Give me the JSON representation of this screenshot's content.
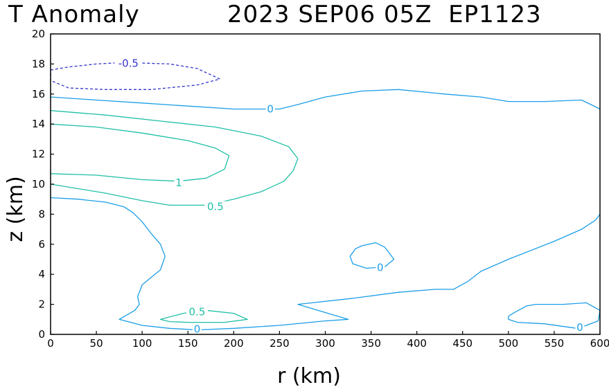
{
  "chart_data": {
    "type": "contour",
    "title_left": "T Anomaly",
    "title_right": "2023 SEP06 05Z  EP1123",
    "xlabel": "r (km)",
    "ylabel": "z (km)",
    "xlim": [
      0,
      600
    ],
    "ylim": [
      0,
      20
    ],
    "xticks": [
      "0",
      "50",
      "100",
      "150",
      "200",
      "250",
      "300",
      "350",
      "400",
      "450",
      "500",
      "550",
      "600"
    ],
    "yticks": [
      "0",
      "2",
      "4",
      "6",
      "8",
      "10",
      "12",
      "14",
      "16",
      "18",
      "20"
    ],
    "colors": {
      "negative": "#3333cc",
      "zero": "#1a9ee6",
      "positive": "#1fbfa6",
      "axis": "#000000"
    },
    "contours": [
      {
        "id": "neg-0.5-upper",
        "level": "-0.5",
        "style": "dashed",
        "color_key": "negative",
        "closed": true,
        "points": [
          [
            0,
            17.6
          ],
          [
            20,
            17.8
          ],
          [
            50,
            18.0
          ],
          [
            80,
            18.1
          ],
          [
            130,
            18.0
          ],
          [
            160,
            17.7
          ],
          [
            185,
            17.0
          ],
          [
            160,
            16.6
          ],
          [
            110,
            16.3
          ],
          [
            60,
            16.3
          ],
          [
            20,
            16.4
          ],
          [
            0,
            16.9
          ]
        ],
        "label": {
          "text": "-0.5",
          "at": [
            85,
            18.05
          ]
        }
      },
      {
        "id": "zero-upper",
        "level": "0",
        "style": "solid",
        "color_key": "zero",
        "closed": false,
        "points": [
          [
            0,
            15.8
          ],
          [
            50,
            15.6
          ],
          [
            100,
            15.4
          ],
          [
            150,
            15.2
          ],
          [
            200,
            15.0
          ],
          [
            250,
            15.0
          ],
          [
            270,
            15.3
          ],
          [
            300,
            15.8
          ],
          [
            340,
            16.2
          ],
          [
            380,
            16.3
          ],
          [
            430,
            16.0
          ],
          [
            470,
            15.8
          ],
          [
            500,
            15.5
          ],
          [
            540,
            15.5
          ],
          [
            580,
            15.6
          ],
          [
            600,
            15.0
          ]
        ],
        "label": {
          "text": "0",
          "at": [
            240,
            15.0
          ]
        }
      },
      {
        "id": "pos-0.5-outer",
        "level": "0.5",
        "style": "solid",
        "color_key": "positive",
        "closed": false,
        "points": [
          [
            0,
            14.9
          ],
          [
            60,
            14.6
          ],
          [
            120,
            14.2
          ],
          [
            180,
            13.8
          ],
          [
            230,
            13.2
          ],
          [
            260,
            12.5
          ],
          [
            270,
            11.7
          ],
          [
            265,
            10.9
          ],
          [
            255,
            10.2
          ],
          [
            230,
            9.5
          ],
          [
            200,
            9.0
          ],
          [
            170,
            8.6
          ],
          [
            130,
            8.6
          ],
          [
            100,
            8.9
          ],
          [
            60,
            9.4
          ],
          [
            30,
            9.7
          ],
          [
            0,
            10.0
          ]
        ],
        "label": {
          "text": "0.5",
          "at": [
            180,
            8.5
          ]
        }
      },
      {
        "id": "pos-1-inner",
        "level": "1",
        "style": "solid",
        "color_key": "positive",
        "closed": false,
        "points": [
          [
            0,
            14.0
          ],
          [
            50,
            13.8
          ],
          [
            100,
            13.4
          ],
          [
            150,
            12.9
          ],
          [
            180,
            12.4
          ],
          [
            195,
            11.9
          ],
          [
            190,
            11.0
          ],
          [
            170,
            10.4
          ],
          [
            140,
            10.2
          ],
          [
            100,
            10.3
          ],
          [
            50,
            10.6
          ],
          [
            0,
            10.7
          ]
        ],
        "label": {
          "text": "1",
          "at": [
            140,
            10.1
          ]
        }
      },
      {
        "id": "zero-lower-left",
        "level": "0",
        "style": "solid",
        "color_key": "zero",
        "closed": false,
        "points": [
          [
            0,
            9.1
          ],
          [
            30,
            9.0
          ],
          [
            60,
            8.8
          ],
          [
            80,
            8.5
          ],
          [
            90,
            8.1
          ],
          [
            100,
            7.5
          ],
          [
            110,
            6.7
          ],
          [
            120,
            6.0
          ],
          [
            125,
            5.2
          ],
          [
            120,
            4.3
          ],
          [
            110,
            3.8
          ],
          [
            100,
            3.3
          ],
          [
            95,
            2.5
          ],
          [
            97,
            2.0
          ],
          [
            92,
            1.6
          ],
          [
            75,
            1.0
          ],
          [
            100,
            0.6
          ],
          [
            130,
            0.4
          ],
          [
            160,
            0.3
          ],
          [
            200,
            0.4
          ],
          [
            250,
            0.6
          ],
          [
            300,
            0.9
          ],
          [
            325,
            1.0
          ],
          [
            270,
            2.0
          ],
          [
            330,
            2.4
          ],
          [
            380,
            2.8
          ],
          [
            420,
            3.0
          ],
          [
            440,
            3.0
          ],
          [
            455,
            3.5
          ],
          [
            470,
            4.2
          ],
          [
            500,
            5.0
          ],
          [
            550,
            6.2
          ],
          [
            580,
            7.0
          ],
          [
            595,
            7.6
          ],
          [
            600,
            8.0
          ]
        ],
        "label": {
          "text": "0",
          "at": [
            160,
            0.35
          ]
        }
      },
      {
        "id": "zero-blob-mid",
        "level": "0",
        "style": "solid",
        "color_key": "zero",
        "closed": true,
        "points": [
          [
            340,
            5.9
          ],
          [
            355,
            6.1
          ],
          [
            365,
            5.8
          ],
          [
            375,
            5.0
          ],
          [
            365,
            4.5
          ],
          [
            345,
            4.4
          ],
          [
            330,
            4.7
          ],
          [
            327,
            5.2
          ],
          [
            333,
            5.7
          ]
        ],
        "label": {
          "text": "0",
          "at": [
            360,
            4.45
          ]
        }
      },
      {
        "id": "pos-0.5-lower",
        "level": "0.5",
        "style": "solid",
        "color_key": "positive",
        "closed": true,
        "points": [
          [
            120,
            1.0
          ],
          [
            145,
            1.4
          ],
          [
            170,
            1.6
          ],
          [
            200,
            1.4
          ],
          [
            215,
            1.0
          ],
          [
            190,
            0.8
          ],
          [
            150,
            0.8
          ],
          [
            130,
            0.85
          ]
        ],
        "label": {
          "text": "0.5",
          "at": [
            160,
            1.5
          ]
        }
      },
      {
        "id": "zero-blob-right",
        "level": "0",
        "style": "solid",
        "color_key": "zero",
        "closed": true,
        "points": [
          [
            500,
            1.2
          ],
          [
            505,
            1.4
          ],
          [
            520,
            1.9
          ],
          [
            530,
            2.0
          ],
          [
            560,
            2.0
          ],
          [
            585,
            2.1
          ],
          [
            600,
            1.6
          ],
          [
            598,
            0.9
          ],
          [
            585,
            0.6
          ],
          [
            575,
            0.4
          ],
          [
            540,
            0.7
          ],
          [
            510,
            0.8
          ],
          [
            500,
            1.0
          ]
        ],
        "label": {
          "text": "0",
          "at": [
            578,
            0.45
          ]
        }
      }
    ]
  }
}
